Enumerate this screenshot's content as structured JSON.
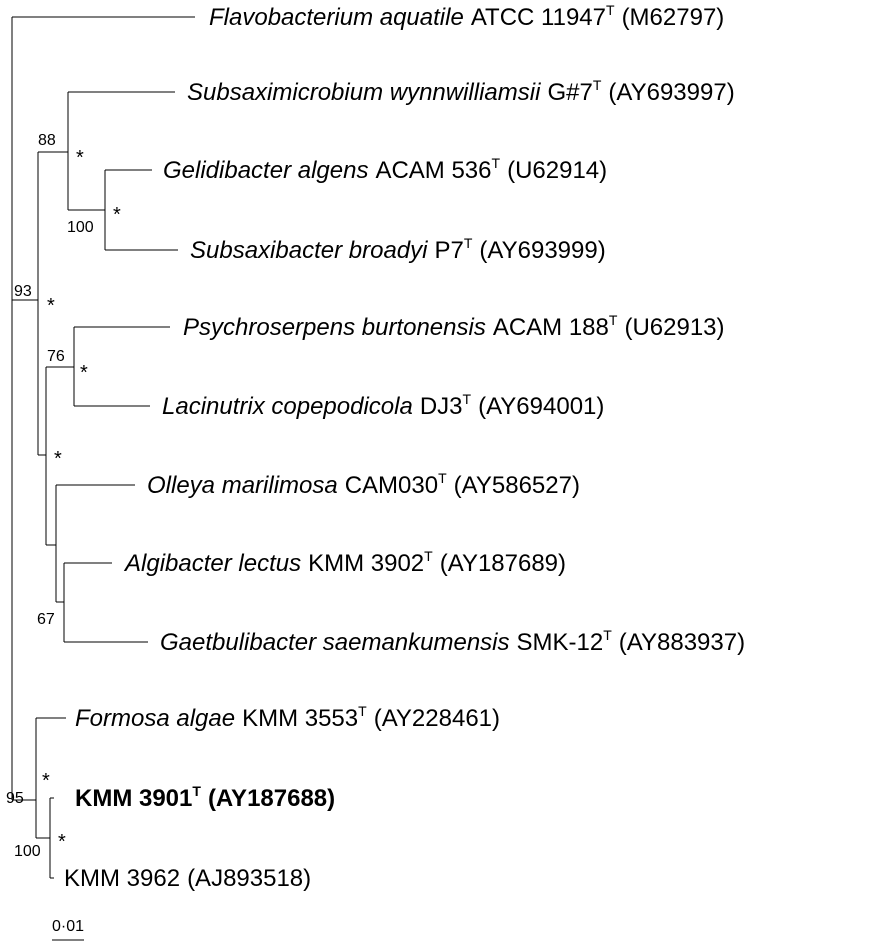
{
  "taxa": [
    {
      "genus_species": "Flavobacterium aquatile",
      "strain": "ATCC 11947",
      "type_mark": "T",
      "accession": "(M62797)",
      "bold": false
    },
    {
      "genus_species": "Subsaximicrobium wynnwilliamsii",
      "strain": "G#7",
      "type_mark": "T",
      "accession": "(AY693997)",
      "bold": false
    },
    {
      "genus_species": "Gelidibacter algens",
      "strain": "ACAM 536",
      "type_mark": "T",
      "accession": "(U62914)",
      "bold": false
    },
    {
      "genus_species": "Subsaxibacter broadyi",
      "strain": "P7",
      "type_mark": "T",
      "accession": "(AY693999)",
      "bold": false
    },
    {
      "genus_species": "Psychroserpens burtonensis",
      "strain": "ACAM 188",
      "type_mark": "T",
      "accession": "(U62913)",
      "bold": false
    },
    {
      "genus_species": "Lacinutrix copepodicola",
      "strain": "DJ3",
      "type_mark": "T",
      "accession": "(AY694001)",
      "bold": false
    },
    {
      "genus_species": "Olleya marilimosa",
      "strain": "CAM030",
      "type_mark": "T",
      "accession": "(AY586527)",
      "bold": false
    },
    {
      "genus_species": "Algibacter lectus",
      "strain": "KMM 3902",
      "type_mark": "T",
      "accession": "(AY187689)",
      "bold": false
    },
    {
      "genus_species": "Gaetbulibacter saemankumensis",
      "strain": "SMK-12",
      "type_mark": "T",
      "accession": "(AY883937)",
      "bold": false
    },
    {
      "genus_species": "Formosa algae",
      "strain": "KMM 3553",
      "type_mark": "T",
      "accession": "(AY228461)",
      "bold": false
    },
    {
      "genus_species": "",
      "strain": "KMM 3901",
      "type_mark": "T",
      "accession": "(AY187688)",
      "bold": true
    },
    {
      "genus_species": "",
      "strain": "KMM 3962",
      "type_mark": "",
      "accession": "(AJ893518)",
      "bold": false
    }
  ],
  "bootstrap_values": [
    "88",
    "100",
    "93",
    "76",
    "67",
    "95",
    "100"
  ],
  "asterisk": "*",
  "scale_bar": {
    "label": "0·01"
  }
}
